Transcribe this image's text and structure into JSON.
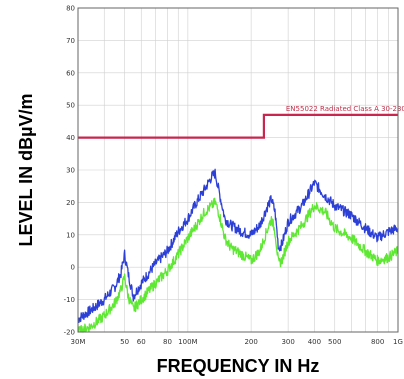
{
  "chart_data": {
    "type": "line",
    "ylabel": "LEVEL IN dBµV/m",
    "xlabel": "FREQUENCY IN Hz",
    "xscale": "log",
    "xlim": [
      30,
      1000
    ],
    "ylim": [
      -20,
      80
    ],
    "yticks": [
      80,
      70,
      60,
      50,
      40,
      30,
      20,
      10,
      0,
      -10,
      -20
    ],
    "xtick_values": [
      30,
      50,
      60,
      80,
      100,
      200,
      300,
      400,
      500,
      800,
      1000
    ],
    "xtick_labels": [
      "30M",
      "50",
      "60",
      "80",
      "100M",
      "200",
      "300",
      "400",
      "500",
      "800",
      "1G"
    ],
    "grid": true,
    "limit_line": {
      "label": "EN55022 Radiated Class A 30-230Mhz",
      "color": "#c8264f",
      "segments": [
        {
          "x": [
            30,
            230
          ],
          "y": 40
        },
        {
          "x": [
            230,
            1000
          ],
          "y": 47
        }
      ]
    },
    "series": [
      {
        "color": "#2c3fd6",
        "points": [
          [
            30,
            -16
          ],
          [
            35,
            -13
          ],
          [
            40,
            -10
          ],
          [
            45,
            -6
          ],
          [
            48,
            -2
          ],
          [
            50,
            4
          ],
          [
            52,
            -2
          ],
          [
            55,
            -9
          ],
          [
            60,
            -5
          ],
          [
            70,
            1
          ],
          [
            80,
            5
          ],
          [
            90,
            11
          ],
          [
            100,
            15
          ],
          [
            110,
            20
          ],
          [
            120,
            24
          ],
          [
            130,
            28
          ],
          [
            135,
            29
          ],
          [
            140,
            24
          ],
          [
            150,
            15
          ],
          [
            160,
            13
          ],
          [
            180,
            11
          ],
          [
            200,
            10
          ],
          [
            220,
            13
          ],
          [
            240,
            19
          ],
          [
            250,
            21
          ],
          [
            260,
            17
          ],
          [
            270,
            6
          ],
          [
            280,
            7
          ],
          [
            300,
            14
          ],
          [
            350,
            19
          ],
          [
            400,
            26
          ],
          [
            450,
            22
          ],
          [
            500,
            19
          ],
          [
            600,
            16
          ],
          [
            700,
            12
          ],
          [
            800,
            9
          ],
          [
            900,
            11
          ],
          [
            1000,
            12
          ]
        ]
      },
      {
        "color": "#5fe833",
        "points": [
          [
            30,
            -20
          ],
          [
            35,
            -18
          ],
          [
            40,
            -15
          ],
          [
            45,
            -11
          ],
          [
            48,
            -7
          ],
          [
            50,
            -3
          ],
          [
            52,
            -9
          ],
          [
            55,
            -13
          ],
          [
            60,
            -10
          ],
          [
            70,
            -5
          ],
          [
            80,
            -1
          ],
          [
            90,
            4
          ],
          [
            100,
            9
          ],
          [
            110,
            13
          ],
          [
            120,
            17
          ],
          [
            130,
            19
          ],
          [
            135,
            20
          ],
          [
            140,
            17
          ],
          [
            150,
            9
          ],
          [
            160,
            6
          ],
          [
            180,
            4
          ],
          [
            200,
            2
          ],
          [
            220,
            5
          ],
          [
            240,
            12
          ],
          [
            250,
            15
          ],
          [
            260,
            11
          ],
          [
            270,
            1
          ],
          [
            280,
            2
          ],
          [
            300,
            8
          ],
          [
            350,
            13
          ],
          [
            400,
            19
          ],
          [
            450,
            17
          ],
          [
            500,
            12
          ],
          [
            600,
            9
          ],
          [
            700,
            5
          ],
          [
            800,
            2
          ],
          [
            900,
            3
          ],
          [
            1000,
            5
          ]
        ]
      }
    ]
  }
}
